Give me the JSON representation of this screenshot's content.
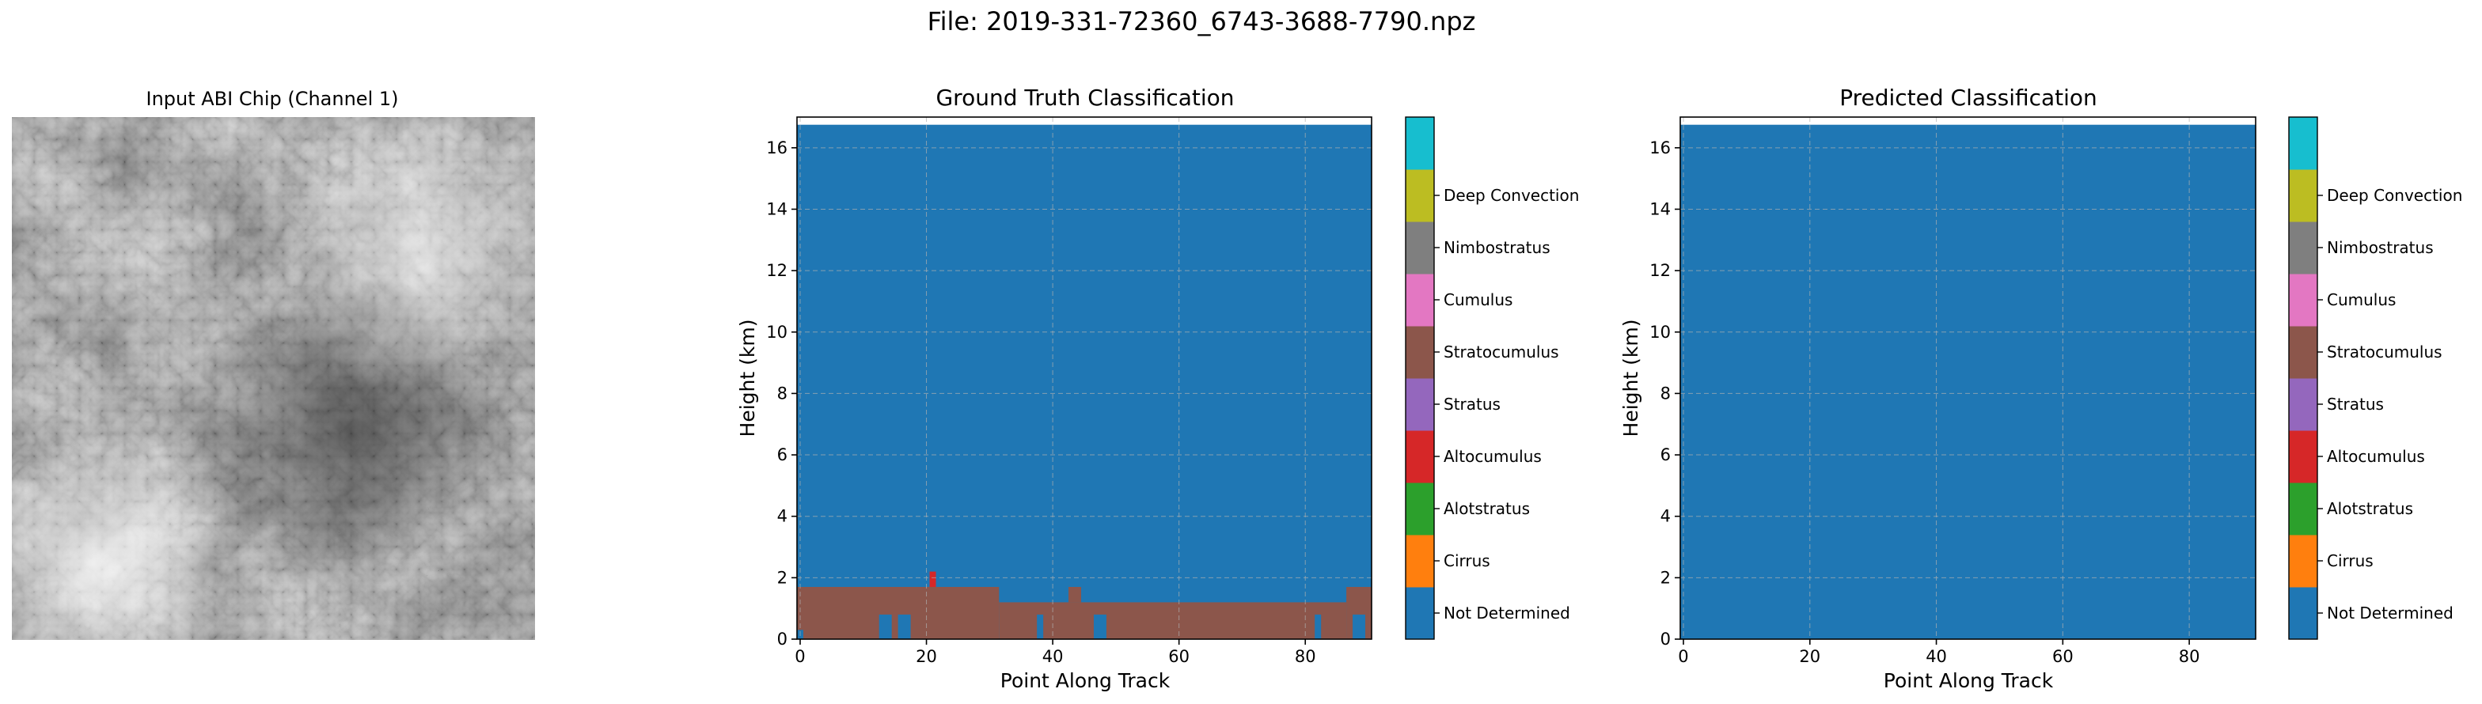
{
  "figure_title": "File: 2019-331-72360_6743-3688-7790.npz",
  "colors": {
    "not_determined": "#1f77b4",
    "cirrus": "#ff7f0e",
    "alotstratus": "#2ca02c",
    "altocumulus": "#d62728",
    "stratus": "#9467bd",
    "stratocumulus": "#8c564b",
    "cumulus": "#e377c2",
    "nimbostratus": "#7f7f7f",
    "deep_convection": "#bcbd22",
    "extra": "#17becf"
  },
  "chart_data": [
    {
      "type": "image",
      "title": "Input ABI Chip (Channel 1)",
      "colormap": "gray"
    },
    {
      "type": "heatmap",
      "title": "Ground Truth Classification",
      "xlabel": "Point Along Track",
      "ylabel": "Height (km)",
      "xlim": [
        -0.5,
        90.5
      ],
      "ylim": [
        0,
        17
      ],
      "xticks": [
        0,
        20,
        40,
        60,
        80
      ],
      "yticks": [
        0,
        2,
        4,
        6,
        8,
        10,
        12,
        14,
        16
      ],
      "grid": true,
      "background_class": "Not Determined",
      "cells": [
        {
          "class": "Stratocumulus",
          "x": [
            -0.5,
            31.5
          ],
          "y": [
            0.0,
            1.7
          ]
        },
        {
          "class": "Stratocumulus",
          "x": [
            31.5,
            86.5
          ],
          "y": [
            0.0,
            1.2
          ]
        },
        {
          "class": "Stratocumulus",
          "x": [
            86.5,
            90.5
          ],
          "y": [
            0.0,
            1.7
          ]
        },
        {
          "class": "Stratocumulus",
          "x": [
            42.5,
            44.5
          ],
          "y": [
            1.2,
            1.7
          ]
        },
        {
          "class": "Altocumulus",
          "x": [
            20.5,
            21.5
          ],
          "y": [
            1.7,
            2.2
          ]
        },
        {
          "class": "Not Determined",
          "x": [
            -0.5,
            0.5
          ],
          "y": [
            0.0,
            0.3
          ]
        },
        {
          "class": "Not Determined",
          "x": [
            12.5,
            14.5
          ],
          "y": [
            0.0,
            0.8
          ]
        },
        {
          "class": "Not Determined",
          "x": [
            15.5,
            17.5
          ],
          "y": [
            0.0,
            0.8
          ]
        },
        {
          "class": "Not Determined",
          "x": [
            37.5,
            38.5
          ],
          "y": [
            0.0,
            0.8
          ]
        },
        {
          "class": "Not Determined",
          "x": [
            46.5,
            48.5
          ],
          "y": [
            0.0,
            0.8
          ]
        },
        {
          "class": "Not Determined",
          "x": [
            81.5,
            82.5
          ],
          "y": [
            0.0,
            0.8
          ]
        },
        {
          "class": "Not Determined",
          "x": [
            87.5,
            89.5
          ],
          "y": [
            0.0,
            0.8
          ]
        }
      ],
      "colorbar": [
        "Not Determined",
        "Cirrus",
        "Alotstratus",
        "Altocumulus",
        "Stratus",
        "Stratocumulus",
        "Cumulus",
        "Nimbostratus",
        "Deep Convection"
      ]
    },
    {
      "type": "heatmap",
      "title": "Predicted Classification",
      "xlabel": "Point Along Track",
      "ylabel": "Height (km)",
      "xlim": [
        -0.5,
        90.5
      ],
      "ylim": [
        0,
        17
      ],
      "xticks": [
        0,
        20,
        40,
        60,
        80
      ],
      "yticks": [
        0,
        2,
        4,
        6,
        8,
        10,
        12,
        14,
        16
      ],
      "grid": true,
      "background_class": "Not Determined",
      "cells": [],
      "colorbar": [
        "Not Determined",
        "Cirrus",
        "Alotstratus",
        "Altocumulus",
        "Stratus",
        "Stratocumulus",
        "Cumulus",
        "Nimbostratus",
        "Deep Convection"
      ]
    }
  ]
}
